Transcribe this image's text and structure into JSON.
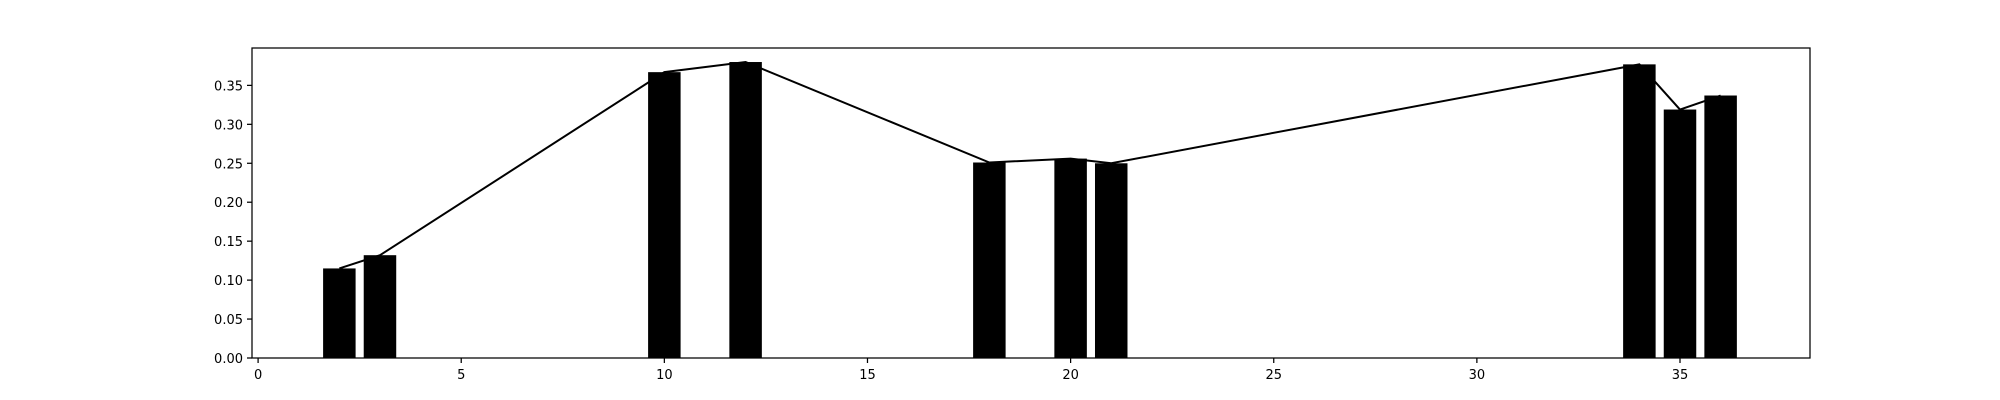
{
  "chart_data": {
    "type": "bar",
    "title": "",
    "xlabel": "",
    "ylabel": "",
    "x": [
      2,
      3,
      10,
      12,
      18,
      20,
      21,
      34,
      35,
      36
    ],
    "values": [
      0.115,
      0.132,
      0.367,
      0.38,
      0.251,
      0.256,
      0.25,
      0.377,
      0.319,
      0.337
    ],
    "line_overlay": true,
    "xlim": [
      -0.15,
      38.2
    ],
    "ylim": [
      0,
      0.398
    ],
    "xticks": [
      0,
      5,
      10,
      15,
      20,
      25,
      30,
      35
    ],
    "xtick_labels": [
      "0",
      "5",
      "10",
      "15",
      "20",
      "25",
      "30",
      "35"
    ],
    "yticks": [
      0,
      0.05,
      0.1,
      0.15,
      0.2,
      0.25,
      0.3,
      0.35
    ],
    "ytick_labels": [
      "0.00",
      "0.05",
      "0.10",
      "0.15",
      "0.20",
      "0.25",
      "0.30",
      "0.35"
    ],
    "grid": false,
    "bar_color": "#000000",
    "line_color": "#000000"
  }
}
